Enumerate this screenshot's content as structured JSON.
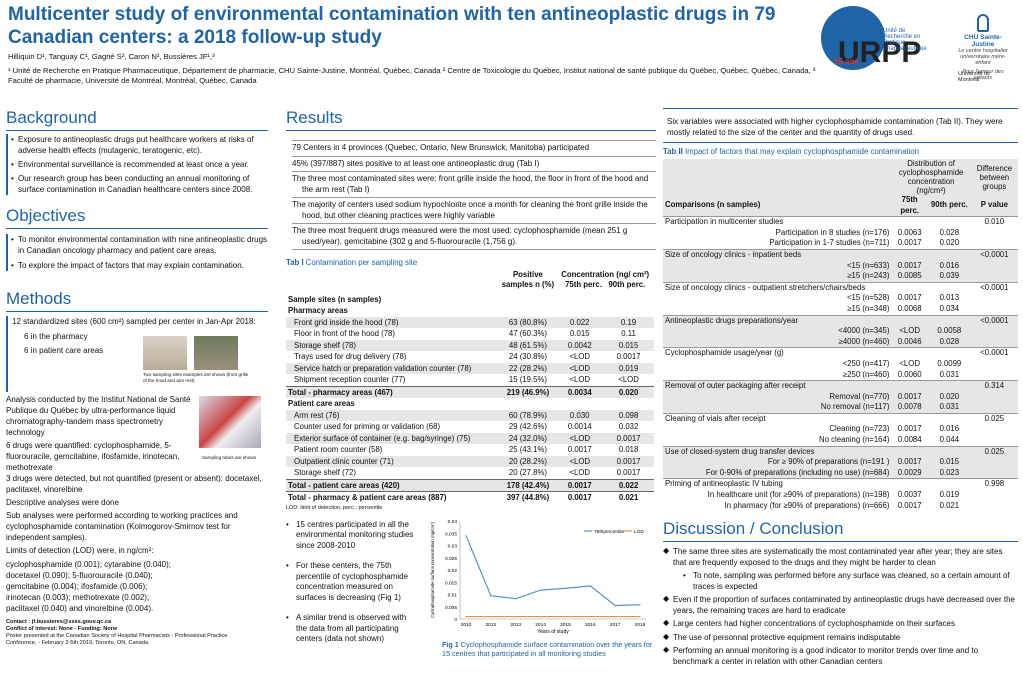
{
  "title": "Multicenter study of environmental contamination with ten antineoplastic drugs in 79 Canadian centers: a 2018 follow-up study",
  "authors": "Hilliquin D¹, Tanguay C¹, Gagné S², Caron N², Bussières JF¹,³",
  "affiliations": "¹ Unité de Recherche en Pratique Pharmaceutique, Département de pharmacie, CHU Sainte-Justine, Montréal, Québec, Canada  ² Centre de Toxicologie du Québec, Institut national de santé publique du Québec, Québec, Québec, Canada, ³ Faculté de pharmacie, Université de Montréal, Montréal, Québec, Canada",
  "logos": {
    "urpp_big": "URPP",
    "urpp_15": "15 ans",
    "urpp_text": "Unité de Recherche en Pratique Pharmaceutique",
    "chu_name": "CHU Sainte-Justine",
    "chu_tag": "Le centre hospitalier universitaire mère-enfant",
    "chu_tag2": "Pour l'amour des enfants",
    "udem": "Université de Montréal"
  },
  "background": {
    "heading": "Background",
    "items": [
      "Exposure to antineoplastic drugs put healthcare workers at risks of adverse health effects (mutagenic, teratogenic, etc).",
      "Environmental surveillance is recommended at least once a year.",
      "Our research group has been conducting an annual monitoring of surface contamination in Canadian healthcare centers since 2008."
    ]
  },
  "objectives": {
    "heading": "Objectives",
    "items": [
      "To monitor environmental contamination with nine antineoplastic drugs in Canadian oncology pharmacy and patient care areas.",
      "To explore the impact of factors that may explain contamination."
    ]
  },
  "methods": {
    "heading": "Methods",
    "box1": "12 standardized sites (600 cm²) sampled per center in Jan-Apr 2018:",
    "box1_a": "6 in the pharmacy",
    "box1_b": "6 in patient care areas",
    "photo_caption": "Two sampling sites examples are shown (front grille of the hood and arm rest)",
    "tubes_caption": "Sampling tubes are shown",
    "analysis": "Analysis conducted by the Institut National de Santé Publique du Québec by ultra-performance liquid chromatography-tandem mass spectrometry technology",
    "quantified": "6 drugs were quantified: cyclophosphamide, 5-fluorouracile, gemcitabine, ifosfamide, irinotecan, methotrexate",
    "detected": "3 drugs were detected, but not quantified (present or absent): docetaxel, paclitaxel, vinorelbine",
    "descriptive": "Descriptive analyses were done",
    "sub": "Sub analyses were performed according to working practices and cyclophosphamide contamination (Kolmogorov-Smirnov test for independent samples).",
    "lod_title": "Limits of detection (LOD) were, in ng/cm²:",
    "lod_lines": [
      "cyclophosphamide (0.001); cytarabine (0.040);",
      "docetaxel (0.090); 5-fluorouracile (0.040);",
      "gemcitabine (0.004); ifosfamide (0.006);",
      "irinotecan (0.003); methotrexate (0.002);",
      "paclitaxel (0.040) and vinorelbine (0.004)."
    ],
    "contact": "Contact : jf.bussieres@ssss.gouv.qc.ca",
    "conflict": "Conflict of interest: None - Funding: None",
    "poster": "Poster presented at the Canadian Society of Hospital Pharmacists - Professional Practice Conference, - February 2-5th 2019, Toronto, ON, Canada."
  },
  "results": {
    "heading": "Results",
    "lines": [
      "79 Centers in 4 provinces (Quebec, Ontario, New Brunswick, Manitoba) participated",
      "45% (397/887) sites positive to at least one antineoplastic drug (Tab I)",
      "The three most contaminated sites were: front grille inside the hood, the floor in front of the hood and the arm rest (Tab I)",
      "The majority of centers used sodium hypochlorite once a month for cleaning the front grille inside the hood, but other cleaning practices were highly variable",
      "The three most frequent drugs measured were the most used: cyclophosphamide (mean 251 g used/year), gemcitabine (302 g and 5-fluorouracile (1,756 g)."
    ]
  },
  "tab1": {
    "caption_a": "Tab I",
    "caption_b": "Contamination per sampling site",
    "h_sites": "Sample sites (n samples)",
    "h_pos": "Positive samples n (%)",
    "h_conc": "Concentration (ng/ cm²)",
    "h_p75": "75th perc.",
    "h_p90": "90th perc.",
    "footnote": "LOD: limit of detection, perc.: percentile",
    "rows": [
      {
        "kind": "section",
        "site": "Pharmacy areas"
      },
      {
        "site": "Front grid inside the hood (78)",
        "pos": "63 (80.8%)",
        "p75": "0.022",
        "p90": "0.19",
        "grey": true
      },
      {
        "site": "Floor in front of the hood (78)",
        "pos": "47 (60.3%)",
        "p75": "0.015",
        "p90": "0.11"
      },
      {
        "site": "Storage shelf (78)",
        "pos": "48 (61.5%)",
        "p75": "0.0042",
        "p90": "0.015",
        "grey": true
      },
      {
        "site": "Trays used for drug delivery (78)",
        "pos": "24 (30.8%)",
        "p75": "<LOD",
        "p90": "0.0017"
      },
      {
        "site": "Service hatch or preparation validation counter (78)",
        "pos": "22 (28.2%)",
        "p75": "<LOD",
        "p90": "0.019",
        "grey": true
      },
      {
        "site": "Shipment reception counter (77)",
        "pos": "15 (19.5%)",
        "p75": "<LOD",
        "p90": "<LOD"
      },
      {
        "kind": "total",
        "site": "Total - pharmacy areas (467)",
        "pos": "219 (46.9%)",
        "p75": "0.0034",
        "p90": "0.020",
        "grey": true
      },
      {
        "kind": "section",
        "site": "Patient care areas"
      },
      {
        "site": "Arm rest (76)",
        "pos": "60 (78.9%)",
        "p75": "0.030",
        "p90": "0.098",
        "grey": true
      },
      {
        "site": "Counter used for priming or validation (68)",
        "pos": "29 (42.6%)",
        "p75": "0.0014",
        "p90": "0.032"
      },
      {
        "site": "Exterior surface of container (e.g. bag/syringe) (75)",
        "pos": "24 (32.0%)",
        "p75": "<LOD",
        "p90": "0.0017",
        "grey": true
      },
      {
        "site": "Patient room counter (58)",
        "pos": "25 (43.1%)",
        "p75": "0.0017",
        "p90": "0.018"
      },
      {
        "site": "Outpatient clinic counter (71)",
        "pos": "20 (28.2%)",
        "p75": "<LOD",
        "p90": "0.0017",
        "grey": true
      },
      {
        "site": "Storage shelf (72)",
        "pos": "20 (27.8%)",
        "p75": "<LOD",
        "p90": "0.0017"
      },
      {
        "kind": "total",
        "site": "Total - patient care areas (420)",
        "pos": "178 (42.4%)",
        "p75": "0.0017",
        "p90": "0.022",
        "grey": true
      },
      {
        "kind": "total",
        "site": "Total - pharmacy & patient care areas (887)",
        "pos": "397 (44.8%)",
        "p75": "0.0017",
        "p90": "0.021"
      }
    ]
  },
  "trend": {
    "items": [
      "15 centres participated in all the environmental monitoring studies since 2008-2010",
      "For these centers, the 75th percentile of cyclophosphamide concentration measured on surfaces is decreasing (Fig 1)",
      "A similar trend is observed with the data from all participating centers (data not shown)"
    ]
  },
  "chart_data": {
    "type": "line",
    "title": "",
    "xlabel": "Years of study",
    "ylabel": "Cyclophosphamide surface concentration (ng/cm²)",
    "x": [
      "2010",
      "2012",
      "2013",
      "2014",
      "2015",
      "2016",
      "2017",
      "2018"
    ],
    "ylim": [
      0,
      0.04
    ],
    "yticks": [
      "0",
      "0.005",
      "0.01",
      "0.015",
      "0.02",
      "0.025",
      "0.03",
      "0.035",
      "0.04"
    ],
    "series": [
      {
        "name": "75thpercentile",
        "color": "#5b8fd0",
        "values": [
          0.034,
          0.0095,
          0.0083,
          0.0118,
          0.0125,
          0.0135,
          0.0055,
          0.0058
        ]
      },
      {
        "name": "LOD",
        "color": "#e8904a",
        "values": [
          0.001,
          0.001,
          0.001,
          0.001,
          0.001,
          0.001,
          0.001,
          0.001
        ]
      }
    ],
    "caption_a": "Fig 1",
    "caption_b": "Cyclophosphamide surface contamination over the years for 15 centres that participated in all monitoring studies"
  },
  "tab2": {
    "intro": "Six variables were associated with higher cyclophosphamide contamination (Tab II). They were mostly related to the size of the center and the quantity of drugs used.",
    "caption_a": "Tab II",
    "caption_b": "Impact of factors that may explain cyclophosphamide contamination",
    "h_dist": "Distribution of cyclophosphamide concentration (ng/cm²)",
    "h_diff": "Difference between groups",
    "h_comp": "Comparisons (n samples)",
    "h_p75": "75th perc.",
    "h_p90": "90th perc.",
    "h_p": "P value",
    "rows": [
      {
        "kind": "head",
        "label": "Participation in multicenter studies",
        "p": "0.010"
      },
      {
        "label": "Participation in 8 studies (n=176)",
        "p75": "0.0063",
        "p90": "0.028"
      },
      {
        "label": "Participation in 1-7 studies (n=711)",
        "p75": "0.0017",
        "p90": "0.020"
      },
      {
        "kind": "head",
        "label": "Size of oncology clinics - inpatient beds",
        "p": "<0.0001",
        "grey": true
      },
      {
        "label": "<15 (n=633)",
        "p75": "0.0017",
        "p90": "0.016",
        "grey": true
      },
      {
        "label": "≥15 (n=243)",
        "p75": "0.0085",
        "p90": "0.039",
        "grey": true
      },
      {
        "kind": "head",
        "label": "Size of oncology clinics - outpatient stretchers/chairs/beds",
        "p": "<0.0001"
      },
      {
        "label": "<15 (n=528)",
        "p75": "0.0017",
        "p90": "0.013"
      },
      {
        "label": "≥15 (n=348)",
        "p75": "0.0068",
        "p90": "0.034"
      },
      {
        "kind": "head",
        "label": "Antineoplastic drugs preparations/year",
        "p": "<0.0001",
        "grey": true
      },
      {
        "label": "<4000 (n=345)",
        "p75": "<LOD",
        "p90": "0.0058",
        "grey": true
      },
      {
        "label": "≥4000 (n=460)",
        "p75": "0.0046",
        "p90": "0.028",
        "grey": true
      },
      {
        "kind": "head",
        "label": "Cyclophosphamide usage/year (g)",
        "p": "<0.0001"
      },
      {
        "label": "<250 (n=417)",
        "p75": "<LOD",
        "p90": "0.0099"
      },
      {
        "label": "≥250 (n=460)",
        "p75": "0.0060",
        "p90": "0.031"
      },
      {
        "kind": "head",
        "label": "Removal of outer packaging after receipt",
        "p": "0.314",
        "grey": true
      },
      {
        "label": "Removal (n=770)",
        "p75": "0.0017",
        "p90": "0.020",
        "grey": true
      },
      {
        "label": "No removal (n=117)",
        "p75": "0.0078",
        "p90": "0.031",
        "grey": true
      },
      {
        "kind": "head",
        "label": "Cleaning of vials after receipt",
        "p": "0.025"
      },
      {
        "label": "Cleaning (n=723)",
        "p75": "0.0017",
        "p90": "0.016"
      },
      {
        "label": "No cleaning (n=164)",
        "p75": "0.0084",
        "p90": "0.044"
      },
      {
        "kind": "head",
        "label": "Use of closed-system drug transfer devices",
        "p": "0.025",
        "grey": true
      },
      {
        "label": "For ≥ 90% of preparations (n=191 )",
        "p75": "0.0017",
        "p90": "0.015",
        "grey": true
      },
      {
        "label": "For 0-90% of preparations (including no use) (n=684)",
        "p75": "0.0029",
        "p90": "0.023",
        "grey": true
      },
      {
        "kind": "head",
        "label": "Priming of antineoplastic IV tubing",
        "p": "0.998"
      },
      {
        "label": "In healthcare unit (for ≥90% of preparations) (n=198)",
        "p75": "0.0037",
        "p90": "0.019"
      },
      {
        "label": "In pharmacy (for ≥90% of preparations) (n=666)",
        "p75": "0.0017",
        "p90": "0.021"
      }
    ]
  },
  "discussion": {
    "heading": "Discussion / Conclusion",
    "items": [
      "The same three sites are systematically the most contaminated year after year; they are sites that are frequently exposed to the drugs and they might be harder to clean",
      "To note, sampling was performed before any surface was cleaned, so a certain amount of traces is expected",
      "Even if the proportion of surfaces contaminated by antineoplastic drugs have decreased over the years, the remaining traces are hard to eradicate",
      "Large centers had higher concentrations of cyclophosphamide on their surfaces",
      "The use of personnal protective equipment remains indisputable",
      "Performing an annual monitoring is a good indicator to monitor trends over time and to benchmark a center in relation with other Canadian centers"
    ]
  }
}
